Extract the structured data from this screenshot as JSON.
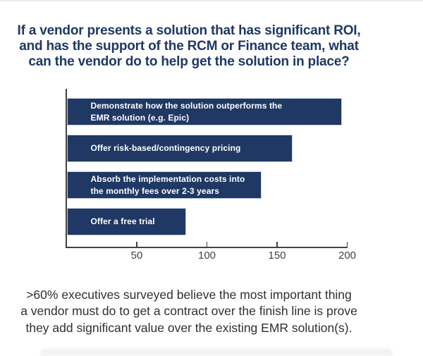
{
  "page": {
    "background": "#ffffff",
    "accent_color": "#1f3864",
    "top_divider_color": "#ececec",
    "bottom_card_color": "#f3f3f3"
  },
  "title": {
    "text": "If a vendor presents a solution that has significant ROI, and has the support of the RCM or Finance team, what can the vendor do to help get the solution in place?",
    "lines": [
      "If a vendor presents a solution that has significant ROI,",
      "and has the support of the RCM or Finance team, what",
      "can the vendor do to help get the solution in place?"
    ],
    "color": "#1f3864"
  },
  "chart_data": {
    "type": "bar",
    "orientation": "horizontal",
    "title": "",
    "xlabel": "",
    "ylabel": "",
    "xlim": [
      0,
      200
    ],
    "xticks": [
      50,
      100,
      150,
      200
    ],
    "grid": false,
    "legend": false,
    "bar_color": "#1f3864",
    "bar_label_color": "#ffffff",
    "axis_color": "#424242",
    "labels_inside_bars": true,
    "categories": [
      "Demonstrate how the solution outperforms the EMR solution (e.g. Epic)",
      "Offer risk-based/contingency pricing",
      "Absorb the implementation costs into the monthly fees over 2-3 years",
      "Offer a free trial"
    ],
    "values": [
      196,
      161,
      139,
      85
    ],
    "bars": [
      {
        "label_lines": [
          "Demonstrate how the solution outperforms the",
          "EMR solution (e.g. Epic)"
        ],
        "value": 196
      },
      {
        "label_lines": [
          "Offer risk-based/contingency pricing"
        ],
        "value": 161
      },
      {
        "label_lines": [
          "Absorb the implementation costs into",
          "the monthly fees over 2-3 years"
        ],
        "value": 139
      },
      {
        "label_lines": [
          "Offer a free trial"
        ],
        "value": 85
      }
    ]
  },
  "caption": {
    "text": ">60% executives surveyed believe the most important thing a vendor must do to get a contract over the finish line is prove they add significant value over the existing EMR solution(s).",
    "lines": [
      ">60% executives surveyed believe the most important thing",
      "a vendor must do to get a contract over the finish line is prove",
      "they add significant value over the existing EMR solution(s)."
    ],
    "color": "#303030"
  }
}
